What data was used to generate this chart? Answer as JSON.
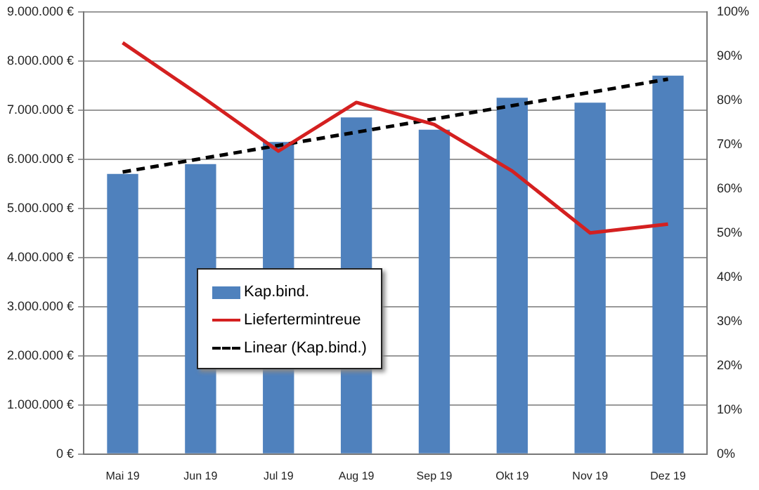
{
  "chart_data": {
    "type": "bar",
    "categories": [
      "Mai 19",
      "Jun 19",
      "Jul 19",
      "Aug 19",
      "Sep 19",
      "Okt 19",
      "Nov 19",
      "Dez 19"
    ],
    "series": [
      {
        "name": "Kap.bind.",
        "color": "#4f81bd",
        "values": [
          5700000,
          5900000,
          6350000,
          6850000,
          6600000,
          7250000,
          7150000,
          7700000
        ]
      },
      {
        "name": "Liefertermintreue",
        "type": "line",
        "axis": "y2",
        "color": "#d42020",
        "values": [
          93,
          81,
          68.5,
          79.5,
          74.5,
          64,
          50,
          52
        ]
      },
      {
        "name": "Linear (Kap.bind.)",
        "type": "line",
        "color": "#000000",
        "line_style": "dashed",
        "values": [
          5740000,
          6010000,
          6280000,
          6550000,
          6820000,
          7090000,
          7360000,
          7630000
        ]
      }
    ],
    "ylim": [
      0,
      9000000
    ],
    "yticks": [
      {
        "value": 0,
        "label": "0 €"
      },
      {
        "value": 1000000,
        "label": "1.000.000 €"
      },
      {
        "value": 2000000,
        "label": "2.000.000 €"
      },
      {
        "value": 3000000,
        "label": "3.000.000 €"
      },
      {
        "value": 4000000,
        "label": "4.000.000 €"
      },
      {
        "value": 5000000,
        "label": "5.000.000 €"
      },
      {
        "value": 6000000,
        "label": "6.000.000 €"
      },
      {
        "value": 7000000,
        "label": "7.000.000 €"
      },
      {
        "value": 8000000,
        "label": "8.000.000 €"
      },
      {
        "value": 9000000,
        "label": "9.000.000 €"
      }
    ],
    "y2lim": [
      0,
      100
    ],
    "y2ticks": [
      {
        "value": 0,
        "label": "0%"
      },
      {
        "value": 10,
        "label": "10%"
      },
      {
        "value": 20,
        "label": "20%"
      },
      {
        "value": 30,
        "label": "30%"
      },
      {
        "value": 40,
        "label": "40%"
      },
      {
        "value": 50,
        "label": "50%"
      },
      {
        "value": 60,
        "label": "60%"
      },
      {
        "value": 70,
        "label": "70%"
      },
      {
        "value": 80,
        "label": "80%"
      },
      {
        "value": 90,
        "label": "90%"
      },
      {
        "value": 100,
        "label": "100%"
      }
    ],
    "grid": "y",
    "legend": "bottom left",
    "marker": "none"
  }
}
